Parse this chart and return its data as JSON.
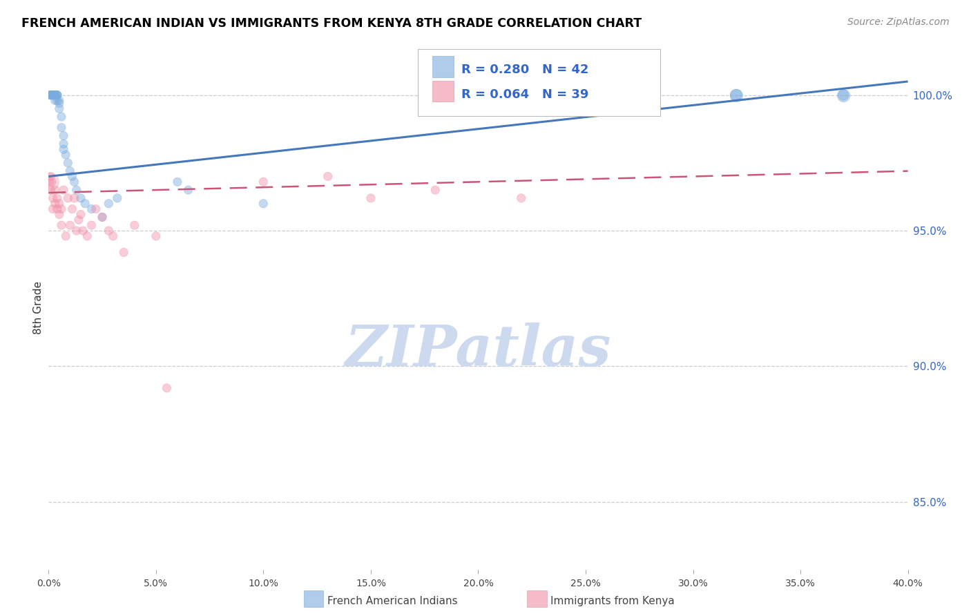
{
  "title": "FRENCH AMERICAN INDIAN VS IMMIGRANTS FROM KENYA 8TH GRADE CORRELATION CHART",
  "source": "Source: ZipAtlas.com",
  "ylabel": "8th Grade",
  "right_yticks": [
    "100.0%",
    "95.0%",
    "90.0%",
    "85.0%"
  ],
  "right_ytick_vals": [
    1.0,
    0.95,
    0.9,
    0.85
  ],
  "xlim": [
    0.0,
    0.4
  ],
  "ylim": [
    0.825,
    1.018
  ],
  "blue_R": 0.28,
  "blue_N": 42,
  "pink_R": 0.064,
  "pink_N": 39,
  "blue_label": "French American Indians",
  "pink_label": "Immigrants from Kenya",
  "background_color": "#ffffff",
  "grid_color": "#cccccc",
  "title_color": "#000000",
  "source_color": "#888888",
  "blue_color": "#7aabdd",
  "pink_color": "#f090a8",
  "blue_line_color": "#4477bb",
  "pink_line_color": "#cc5577",
  "watermark_color": "#ccd9ee",
  "blue_x": [
    0.0005,
    0.001,
    0.001,
    0.0015,
    0.002,
    0.002,
    0.002,
    0.0025,
    0.003,
    0.003,
    0.003,
    0.003,
    0.003,
    0.004,
    0.004,
    0.004,
    0.004,
    0.005,
    0.005,
    0.005,
    0.006,
    0.006,
    0.007,
    0.007,
    0.007,
    0.008,
    0.009,
    0.01,
    0.011,
    0.012,
    0.013,
    0.015,
    0.017,
    0.02,
    0.025,
    0.028,
    0.032,
    0.06,
    0.065,
    0.1,
    0.32,
    0.37
  ],
  "blue_y": [
    1.0,
    1.0,
    1.0,
    1.0,
    1.0,
    1.0,
    1.0,
    1.0,
    1.0,
    1.0,
    1.0,
    1.0,
    0.998,
    1.0,
    1.0,
    1.0,
    0.998,
    0.998,
    0.997,
    0.995,
    0.992,
    0.988,
    0.985,
    0.982,
    0.98,
    0.978,
    0.975,
    0.972,
    0.97,
    0.968,
    0.965,
    0.962,
    0.96,
    0.958,
    0.955,
    0.96,
    0.962,
    0.968,
    0.965,
    0.96,
    1.0,
    1.0
  ],
  "blue_sizes": [
    80,
    80,
    80,
    80,
    80,
    80,
    80,
    80,
    80,
    80,
    80,
    80,
    80,
    80,
    80,
    80,
    80,
    80,
    80,
    80,
    80,
    80,
    80,
    80,
    80,
    80,
    80,
    80,
    80,
    80,
    80,
    80,
    80,
    80,
    80,
    80,
    80,
    80,
    80,
    80,
    150,
    120
  ],
  "pink_x": [
    0.0005,
    0.001,
    0.001,
    0.0015,
    0.002,
    0.002,
    0.003,
    0.003,
    0.004,
    0.004,
    0.005,
    0.005,
    0.006,
    0.006,
    0.007,
    0.008,
    0.009,
    0.01,
    0.011,
    0.012,
    0.013,
    0.014,
    0.015,
    0.016,
    0.018,
    0.02,
    0.022,
    0.025,
    0.028,
    0.03,
    0.035,
    0.04,
    0.05,
    0.055,
    0.1,
    0.13,
    0.15,
    0.18,
    0.22
  ],
  "pink_y": [
    0.968,
    0.97,
    0.965,
    0.968,
    0.962,
    0.958,
    0.965,
    0.96,
    0.962,
    0.958,
    0.96,
    0.956,
    0.958,
    0.952,
    0.965,
    0.948,
    0.962,
    0.952,
    0.958,
    0.962,
    0.95,
    0.954,
    0.956,
    0.95,
    0.948,
    0.952,
    0.958,
    0.955,
    0.95,
    0.948,
    0.942,
    0.952,
    0.948,
    0.892,
    0.968,
    0.97,
    0.962,
    0.965,
    0.962
  ],
  "pink_sizes": [
    80,
    80,
    80,
    80,
    80,
    80,
    80,
    80,
    80,
    80,
    80,
    80,
    80,
    80,
    80,
    80,
    80,
    80,
    80,
    80,
    80,
    80,
    80,
    80,
    80,
    80,
    80,
    80,
    80,
    80,
    80,
    80,
    80,
    80,
    80,
    80,
    80,
    80,
    80
  ],
  "large_pink_x": [
    0.0005
  ],
  "large_pink_y": [
    0.968
  ],
  "large_pink_size": 300
}
